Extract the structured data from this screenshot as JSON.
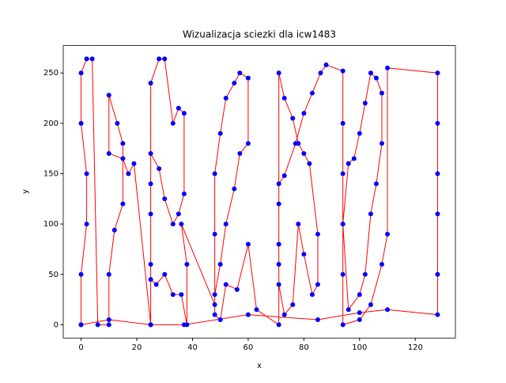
{
  "chart_data": {
    "type": "path",
    "title": "Wizualizacja sciezki dla icw1483",
    "x_label": "x",
    "y_label": "y",
    "line_color": "#ff0000",
    "marker_color": "#0000ff",
    "xlim": [
      -6.4,
      134.4
    ],
    "ylim": [
      -13.2,
      277.2
    ],
    "xticks": [
      0,
      20,
      40,
      60,
      80,
      100,
      120
    ],
    "yticks": [
      0,
      50,
      100,
      150,
      200,
      250
    ],
    "x": [
      0,
      0,
      2,
      2,
      0,
      0,
      2,
      4,
      6,
      10,
      10,
      12,
      15,
      15,
      13,
      10,
      10,
      15,
      17,
      19,
      25,
      25,
      25,
      25,
      28,
      30,
      33,
      35,
      37,
      37,
      35,
      33,
      30,
      28,
      25,
      25,
      25,
      27,
      30,
      33,
      36,
      38,
      38,
      36,
      48,
      48,
      48,
      50,
      52,
      55,
      57,
      60,
      60,
      57,
      55,
      52,
      50,
      48,
      48,
      50,
      52,
      56,
      60,
      63,
      71,
      71,
      71,
      71,
      73,
      76,
      78,
      80,
      82,
      85,
      85,
      83,
      80,
      78,
      76,
      73,
      71,
      71,
      71,
      73,
      77,
      80,
      83,
      86,
      88,
      94,
      94,
      94,
      94,
      96,
      100,
      102,
      104,
      106,
      108,
      108,
      106,
      104,
      102,
      100,
      98,
      96,
      94,
      94,
      94,
      100,
      104,
      108,
      110,
      110,
      128,
      128,
      128,
      128,
      128,
      128,
      110,
      100,
      85,
      60,
      37,
      25,
      10,
      0
    ],
    "values": [
      0,
      50,
      100,
      150,
      200,
      250,
      264,
      264,
      0,
      0,
      50,
      94,
      120,
      180,
      200,
      228,
      170,
      165,
      150,
      160,
      0,
      60,
      140,
      240,
      264,
      264,
      200,
      215,
      210,
      130,
      110,
      100,
      125,
      155,
      170,
      110,
      45,
      40,
      50,
      30,
      30,
      0,
      60,
      100,
      20,
      90,
      150,
      190,
      225,
      240,
      250,
      245,
      180,
      170,
      135,
      100,
      60,
      30,
      10,
      5,
      40,
      35,
      80,
      15,
      0,
      60,
      120,
      250,
      225,
      205,
      180,
      170,
      160,
      90,
      40,
      30,
      70,
      100,
      20,
      10,
      40,
      80,
      140,
      148,
      180,
      210,
      230,
      250,
      258,
      252,
      200,
      150,
      100,
      15,
      30,
      50,
      110,
      140,
      180,
      230,
      245,
      250,
      220,
      190,
      165,
      160,
      100,
      50,
      0,
      5,
      20,
      60,
      90,
      255,
      250,
      200,
      150,
      110,
      50,
      10,
      15,
      12,
      5,
      10,
      0,
      0,
      5,
      0
    ]
  }
}
